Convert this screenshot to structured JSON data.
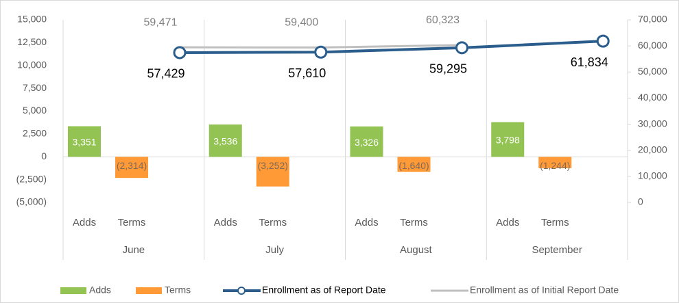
{
  "chart_data": {
    "type": "combo",
    "groups": [
      "June",
      "July",
      "August",
      "September"
    ],
    "subcategories": [
      "Adds",
      "Terms"
    ],
    "series": [
      {
        "name": "Adds",
        "type": "bar",
        "color": "#92c353",
        "values": [
          3351,
          3536,
          3326,
          3798
        ],
        "value_labels": [
          "3,351",
          "3,536",
          "3,326",
          "3,798"
        ]
      },
      {
        "name": "Terms",
        "type": "bar",
        "color": "#ff9a36",
        "values": [
          -2314,
          -3252,
          -1640,
          -1244
        ],
        "value_labels": [
          "(2,314)",
          "(3,252)",
          "(1,640)",
          "(1,244)"
        ]
      },
      {
        "name": "Enrollment as of Report Date",
        "type": "line",
        "axis": "y2",
        "color": "#2a5d8c",
        "values": [
          57429,
          57610,
          59295,
          61834
        ],
        "value_labels": [
          "57,429",
          "57,610",
          "59,295",
          "61,834"
        ]
      },
      {
        "name": "Enrollment as of Initial Report Date",
        "type": "line",
        "axis": "y2",
        "color": "#bfbfbf",
        "values": [
          59471,
          59400,
          60323,
          null
        ],
        "value_labels": [
          "59,471",
          "59,400",
          "60,323",
          null
        ]
      }
    ],
    "ylim": [
      -5000,
      15000
    ],
    "yticks": [
      {
        "value": -5000,
        "label": "(5,000)"
      },
      {
        "value": -2500,
        "label": "(2,500)"
      },
      0,
      {
        "value": 2500,
        "label": "2,500"
      },
      {
        "value": 5000,
        "label": "5,000"
      },
      {
        "value": 7500,
        "label": "7,500"
      },
      {
        "value": 10000,
        "label": "10,000"
      },
      {
        "value": 12500,
        "label": "12,500"
      },
      {
        "value": 15000,
        "label": "15,000"
      }
    ],
    "y2lim": [
      0,
      70000
    ],
    "y2ticks": [
      0,
      {
        "value": 10000,
        "label": "10,000"
      },
      {
        "value": 20000,
        "label": "20,000"
      },
      {
        "value": 30000,
        "label": "30,000"
      },
      {
        "value": 40000,
        "label": "40,000"
      },
      {
        "value": 50000,
        "label": "50,000"
      },
      {
        "value": 60000,
        "label": "60,000"
      },
      {
        "value": 70000,
        "label": "70,000"
      }
    ],
    "legend": "bottom"
  }
}
